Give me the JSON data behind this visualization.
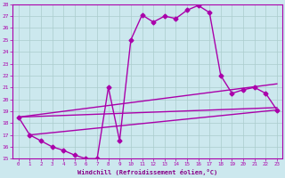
{
  "background_color": "#cce8ee",
  "grid_color": "#aacccc",
  "line_color": "#aa00aa",
  "marker": "D",
  "markersize": 2.5,
  "linewidth": 1.0,
  "xlim": [
    -0.5,
    23.5
  ],
  "ylim": [
    15,
    28
  ],
  "xlabel": "Windchill (Refroidissement éolien,°C)",
  "xlabel_color": "#880088",
  "xticks": [
    0,
    1,
    2,
    3,
    4,
    5,
    6,
    7,
    8,
    9,
    10,
    11,
    12,
    13,
    14,
    15,
    16,
    17,
    18,
    19,
    20,
    21,
    22,
    23
  ],
  "yticks": [
    15,
    16,
    17,
    18,
    19,
    20,
    21,
    22,
    23,
    24,
    25,
    26,
    27,
    28
  ],
  "curve1_x": [
    0,
    1,
    2,
    3,
    4,
    5,
    6,
    7,
    8,
    9,
    10,
    11,
    12,
    13,
    14,
    15,
    16,
    17,
    18,
    19,
    20,
    21,
    22,
    23
  ],
  "curve1_y": [
    18.5,
    17.0,
    16.5,
    16.0,
    15.7,
    15.3,
    15.0,
    15.0,
    21.0,
    16.5,
    25.0,
    27.1,
    26.5,
    27.0,
    26.8,
    27.5,
    27.9,
    27.3,
    22.0,
    20.5,
    20.8,
    21.0,
    20.5,
    19.1
  ],
  "curve2_x": [
    0,
    23
  ],
  "curve2_y": [
    18.5,
    21.3
  ],
  "curve3_x": [
    0,
    23
  ],
  "curve3_y": [
    18.5,
    19.3
  ],
  "curve4_x": [
    1,
    23
  ],
  "curve4_y": [
    17.0,
    19.1
  ]
}
